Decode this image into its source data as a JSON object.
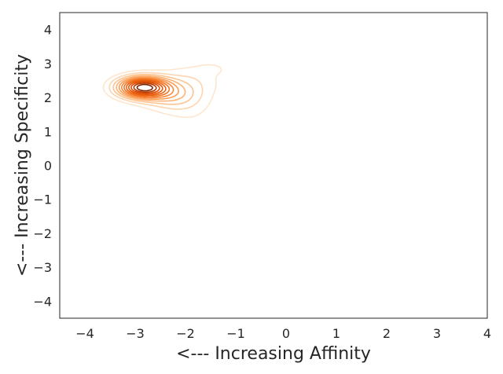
{
  "chart_data": {
    "type": "contour",
    "title": "",
    "xlabel": "<--- Increasing Affinity",
    "ylabel": "<--- Increasing Specificity",
    "xlim": [
      -4.5,
      4.0
    ],
    "ylim": [
      -4.5,
      4.5
    ],
    "xticks": [
      -4,
      -3,
      -2,
      -1,
      0,
      1,
      2,
      3,
      4
    ],
    "xtick_labels": [
      "−4",
      "−3",
      "−2",
      "−1",
      "0",
      "1",
      "2",
      "3",
      "4"
    ],
    "yticks": [
      -4,
      -3,
      -2,
      -1,
      0,
      1,
      2,
      3,
      4
    ],
    "ytick_labels": [
      "−4",
      "−3",
      "−2",
      "−1",
      "0",
      "1",
      "2",
      "3",
      "4"
    ],
    "grid": false,
    "colormap": "Oranges",
    "density_components": [
      {
        "x": -2.85,
        "y": 2.3,
        "weight": 1.0,
        "spread_x": 0.35,
        "spread_y": 0.22
      },
      {
        "x": -2.25,
        "y": 2.05,
        "weight": 0.28,
        "spread_x": 0.42,
        "spread_y": 0.3
      },
      {
        "x": -1.85,
        "y": 2.55,
        "weight": 0.12,
        "spread_x": 0.45,
        "spread_y": 0.35
      },
      {
        "x": -1.45,
        "y": 2.85,
        "weight": 0.06,
        "spread_x": 0.2,
        "spread_y": 0.12
      },
      {
        "x": -1.75,
        "y": 1.05,
        "weight": 0.06,
        "spread_x": 0.28,
        "spread_y": 0.18
      },
      {
        "x": -1.9,
        "y": 1.55,
        "weight": 0.06,
        "spread_x": 0.4,
        "spread_y": 0.3
      }
    ],
    "contour_levels": 12
  }
}
